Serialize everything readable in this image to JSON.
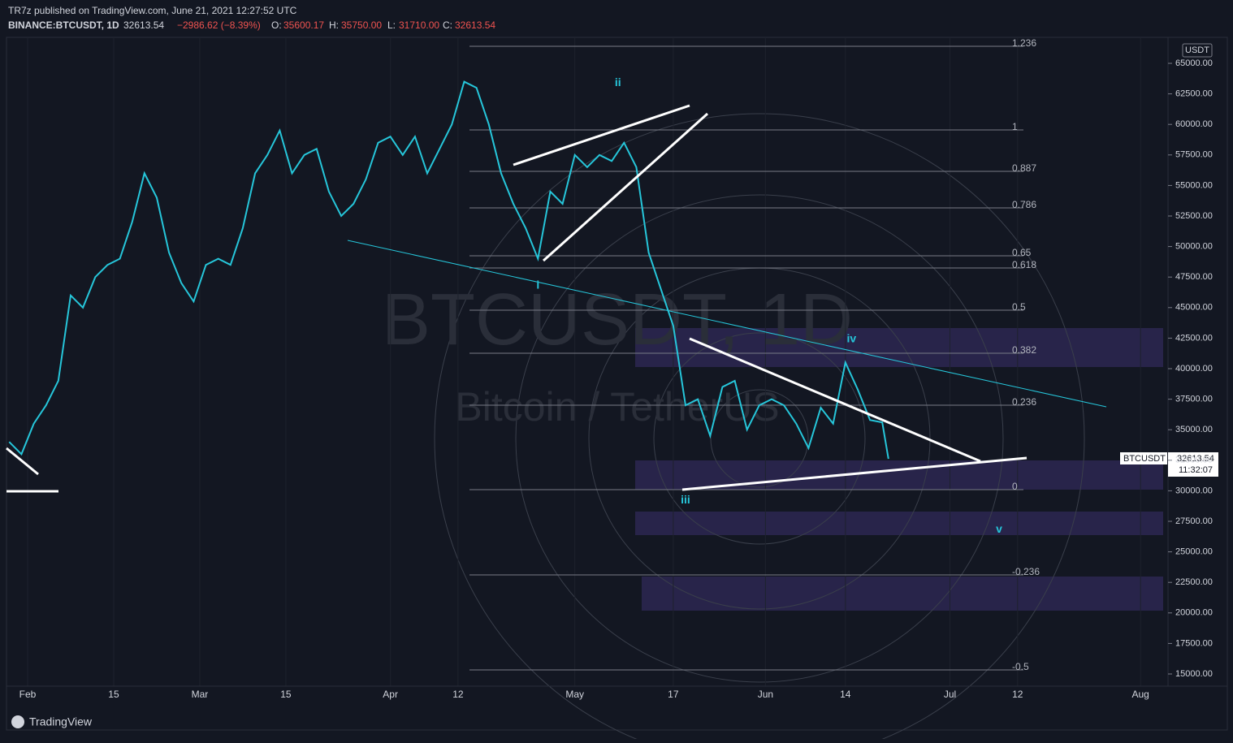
{
  "header": {
    "publisher": "TR7z published on TradingView.com, June 21, 2021 12:27:52 UTC",
    "symbol": "BINANCE:BTCUSDT, 1D",
    "last": "32613.54",
    "change": "−2986.62 (−8.39%)",
    "o_label": "O:",
    "open": "35600.17",
    "h_label": "H:",
    "high": "35750.00",
    "l_label": "L:",
    "low": "31710.00",
    "c_label": "C:",
    "close": "32613.54"
  },
  "watermark": {
    "line1": "BTCUSDT, 1D",
    "line2": "Bitcoin / TetherUS"
  },
  "price_tag": {
    "symbol": "BTCUSDT",
    "price": "32613.54",
    "countdown": "11:32:07"
  },
  "currency": "USDT",
  "footer": "TradingView",
  "chart_data": {
    "type": "line",
    "color": "#26c6da",
    "ylim": [
      15000,
      65000
    ],
    "yticks": [
      {
        "value": 15000,
        "label": "15000.00"
      },
      {
        "value": 17500,
        "label": "17500.00"
      },
      {
        "value": 20000,
        "label": "20000.00"
      },
      {
        "value": 22500,
        "label": "22500.00"
      },
      {
        "value": 25000,
        "label": "25000.00"
      },
      {
        "value": 27500,
        "label": "27500.00"
      },
      {
        "value": 30000,
        "label": "30000.00"
      },
      {
        "value": 32500,
        "label": "32500.00"
      },
      {
        "value": 35000,
        "label": "35000.00"
      },
      {
        "value": 37500,
        "label": "37500.00"
      },
      {
        "value": 40000,
        "label": "40000.00"
      },
      {
        "value": 42500,
        "label": "42500.00"
      },
      {
        "value": 45000,
        "label": "45000.00"
      },
      {
        "value": 47500,
        "label": "47500.00"
      },
      {
        "value": 50000,
        "label": "50000.00"
      },
      {
        "value": 52500,
        "label": "52500.00"
      },
      {
        "value": 55000,
        "label": "55000.00"
      },
      {
        "value": 57500,
        "label": "57500.00"
      },
      {
        "value": 60000,
        "label": "60000.00"
      },
      {
        "value": 62500,
        "label": "62500.00"
      },
      {
        "value": 65000,
        "label": "65000.00"
      }
    ],
    "xticks": [
      {
        "value": "Feb 1",
        "label": "Feb"
      },
      {
        "value": "Feb 15",
        "label": "15"
      },
      {
        "value": "Mar 1",
        "label": "Mar"
      },
      {
        "value": "Mar 15",
        "label": "15"
      },
      {
        "value": "Apr 1",
        "label": "Apr"
      },
      {
        "value": "Apr 12",
        "label": "12"
      },
      {
        "value": "May 1",
        "label": "May"
      },
      {
        "value": "May 17",
        "label": "17"
      },
      {
        "value": "Jun 1",
        "label": "Jun"
      },
      {
        "value": "Jun 14",
        "label": "14"
      },
      {
        "value": "Jul 1",
        "label": "Jul"
      },
      {
        "value": "Jul 12",
        "label": "12"
      },
      {
        "value": "Aug 1",
        "label": "Aug"
      }
    ],
    "x": [
      "Jan 29",
      "Jan 31",
      "Feb 2",
      "Feb 4",
      "Feb 6",
      "Feb 8",
      "Feb 10",
      "Feb 12",
      "Feb 14",
      "Feb 16",
      "Feb 18",
      "Feb 20",
      "Feb 22",
      "Feb 24",
      "Feb 26",
      "Feb 28",
      "Mar 2",
      "Mar 4",
      "Mar 6",
      "Mar 8",
      "Mar 10",
      "Mar 12",
      "Mar 14",
      "Mar 16",
      "Mar 18",
      "Mar 20",
      "Mar 22",
      "Mar 24",
      "Mar 26",
      "Mar 28",
      "Mar 30",
      "Apr 1",
      "Apr 3",
      "Apr 5",
      "Apr 7",
      "Apr 9",
      "Apr 11",
      "Apr 13",
      "Apr 15",
      "Apr 17",
      "Apr 19",
      "Apr 21",
      "Apr 23",
      "Apr 25",
      "Apr 27",
      "Apr 29",
      "May 1",
      "May 3",
      "May 5",
      "May 7",
      "May 9",
      "May 11",
      "May 13",
      "May 15",
      "May 17",
      "May 19",
      "May 21",
      "May 23",
      "May 25",
      "May 27",
      "May 29",
      "May 31",
      "Jun 2",
      "Jun 4",
      "Jun 6",
      "Jun 8",
      "Jun 10",
      "Jun 12",
      "Jun 14",
      "Jun 16",
      "Jun 18",
      "Jun 20",
      "Jun 21"
    ],
    "values": [
      34000,
      33000,
      35500,
      37000,
      39000,
      46000,
      45000,
      47500,
      48500,
      49000,
      52000,
      56000,
      54000,
      49500,
      47000,
      45500,
      48500,
      49000,
      48500,
      51500,
      56000,
      57500,
      59500,
      56000,
      57500,
      58000,
      54500,
      52500,
      53500,
      55500,
      58500,
      59000,
      57500,
      59000,
      56000,
      58000,
      60000,
      63500,
      63000,
      60000,
      56000,
      53500,
      51500,
      49000,
      54500,
      53500,
      57500,
      56500,
      57500,
      57000,
      58500,
      56500,
      49500,
      46500,
      43500,
      37000,
      37500,
      34500,
      38500,
      39000,
      35000,
      37000,
      37500,
      37000,
      35500,
      33500,
      36800,
      35500,
      40500,
      38300,
      35800,
      35600,
      32613.54
    ],
    "fib_levels": [
      {
        "label": "1.236",
        "price": 66396
      },
      {
        "label": "1",
        "price": 59548
      },
      {
        "label": "0.887",
        "price": 56157
      },
      {
        "label": "0.786",
        "price": 53165
      },
      {
        "label": "0.65",
        "price": 49242
      },
      {
        "label": "0.618",
        "price": 48245
      },
      {
        "label": "0.5",
        "price": 44787
      },
      {
        "label": "0.382",
        "price": 41263
      },
      {
        "label": "0.236",
        "price": 37008
      },
      {
        "label": "0",
        "price": 30093
      },
      {
        "label": "-0.236",
        "price": 23112
      },
      {
        "label": "-0.5",
        "price": 15332
      }
    ],
    "waves": [
      {
        "label": "i",
        "x": "Apr 25",
        "price": 46800
      },
      {
        "label": "ii",
        "x": "May 8",
        "price": 63400
      },
      {
        "label": "iii",
        "x": "May 19",
        "price": 29200
      },
      {
        "label": "iv",
        "x": "Jun 15",
        "price": 42400
      },
      {
        "label": "v",
        "x": "Jul 9",
        "price": 26800
      }
    ]
  }
}
